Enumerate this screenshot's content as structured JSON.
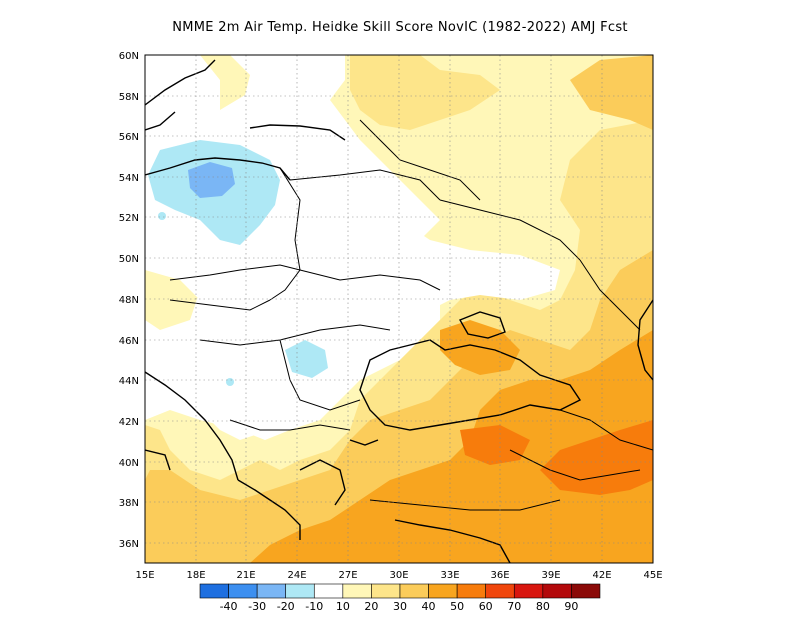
{
  "title": "NMME  2m Air Temp. Heidke Skill Score NovIC (1982-2022) AMJ Fcst",
  "map": {
    "lat_labels": [
      "60N",
      "58N",
      "56N",
      "54N",
      "52N",
      "50N",
      "48N",
      "46N",
      "44N",
      "42N",
      "40N",
      "38N",
      "36N"
    ],
    "lon_labels": [
      "15E",
      "18E",
      "21E",
      "24E",
      "27E",
      "30E",
      "33E",
      "36E",
      "39E",
      "42E",
      "45E"
    ],
    "extent": {
      "lon_min": 15,
      "lon_max": 45,
      "lat_min": 35,
      "lat_max": 60
    },
    "grid": "dotted"
  },
  "colorbar": {
    "labels": [
      "-40",
      "-30",
      "-20",
      "-10",
      "10",
      "20",
      "30",
      "40",
      "50",
      "60",
      "70",
      "80",
      "90"
    ],
    "colors": [
      "#1e6fe0",
      "#3c8ff0",
      "#7ab6f5",
      "#aee8f5",
      "#ffffff",
      "#fff7b8",
      "#fde58a",
      "#fbcc5a",
      "#f8a51f",
      "#f77c0c",
      "#f0460c",
      "#d8160f",
      "#b3090b",
      "#8b0a08"
    ]
  },
  "skill_regions": [
    {
      "name": "baltic-negative",
      "value": "-10"
    },
    {
      "name": "baltic-core",
      "value": "-20"
    },
    {
      "name": "balkans-negative",
      "value": "-10"
    },
    {
      "name": "southeast-positive",
      "value": "40"
    },
    {
      "name": "caucasus-positive",
      "value": "60"
    }
  ]
}
